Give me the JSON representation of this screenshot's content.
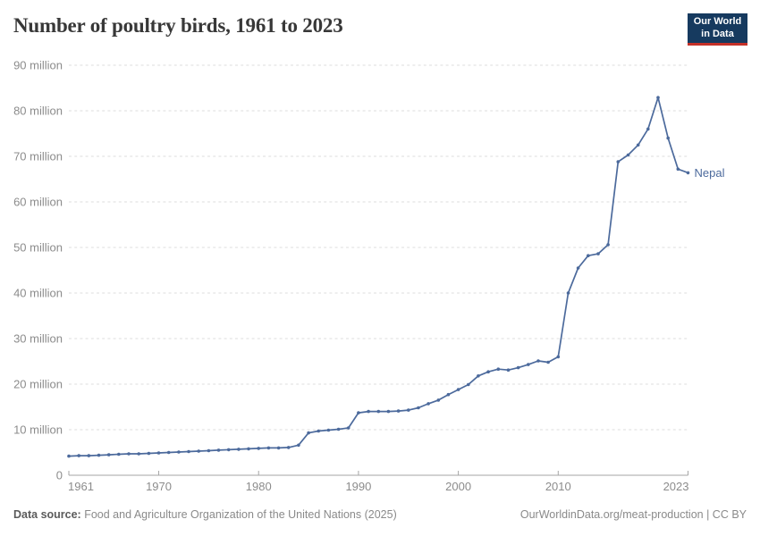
{
  "header": {
    "title": "Number of poultry birds, 1961 to 2023",
    "logo": {
      "line1": "Our World",
      "line2": "in Data",
      "bg_color": "#163a5f",
      "accent_color": "#c43028"
    }
  },
  "chart_data": {
    "type": "line",
    "title": "Number of poultry birds, 1961 to 2023",
    "entity": "Nepal",
    "unit": "million birds",
    "grid": "horizontal-dashed",
    "legend_position": "end-of-line-label",
    "y_axis": {
      "min": 0,
      "max": 90,
      "tick_values": [
        0,
        10,
        20,
        30,
        40,
        50,
        60,
        70,
        80,
        90
      ],
      "tick_labels": [
        "0",
        "10 million",
        "20 million",
        "30 million",
        "40 million",
        "50 million",
        "60 million",
        "70 million",
        "80 million",
        "90 million"
      ]
    },
    "x_axis": {
      "min": 1961,
      "max": 2023,
      "tick_values": [
        1961,
        1970,
        1980,
        1990,
        2000,
        2010,
        2023
      ]
    },
    "series": [
      {
        "name": "Nepal",
        "color": "#4c6a9c",
        "years": [
          1961,
          1962,
          1963,
          1964,
          1965,
          1966,
          1967,
          1968,
          1969,
          1970,
          1971,
          1972,
          1973,
          1974,
          1975,
          1976,
          1977,
          1978,
          1979,
          1980,
          1981,
          1982,
          1983,
          1984,
          1985,
          1986,
          1987,
          1988,
          1989,
          1990,
          1991,
          1992,
          1993,
          1994,
          1995,
          1996,
          1997,
          1998,
          1999,
          2000,
          2001,
          2002,
          2003,
          2004,
          2005,
          2006,
          2007,
          2008,
          2009,
          2010,
          2011,
          2012,
          2013,
          2014,
          2015,
          2016,
          2017,
          2018,
          2019,
          2020,
          2021,
          2022,
          2023
        ],
        "values_millions": [
          4.2,
          4.3,
          4.3,
          4.4,
          4.5,
          4.6,
          4.7,
          4.7,
          4.8,
          4.9,
          5.0,
          5.1,
          5.2,
          5.3,
          5.4,
          5.5,
          5.6,
          5.7,
          5.8,
          5.9,
          6.0,
          6.0,
          6.1,
          6.6,
          9.3,
          9.7,
          9.9,
          10.1,
          10.4,
          13.7,
          14.0,
          14.0,
          14.0,
          14.1,
          14.3,
          14.8,
          15.7,
          16.5,
          17.7,
          18.8,
          19.9,
          21.8,
          22.7,
          23.3,
          23.1,
          23.6,
          24.3,
          25.1,
          24.8,
          26.0,
          40.0,
          45.5,
          48.2,
          48.6,
          50.6,
          68.8,
          70.3,
          72.5,
          76.0,
          82.9,
          74.0,
          67.2,
          66.4
        ]
      }
    ]
  },
  "footer": {
    "source_label": "Data source:",
    "source_text": "Food and Agriculture Organization of the United Nations (2025)",
    "link_text": "OurWorldinData.org/meat-production | CC BY"
  }
}
